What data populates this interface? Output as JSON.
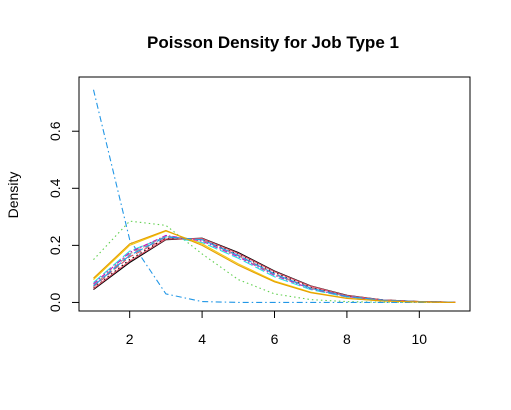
{
  "chart_data": {
    "type": "line",
    "title": "Poisson Density for Job Type 1",
    "xlabel": "",
    "ylabel": "Density",
    "xlim": [
      0.6,
      11.4
    ],
    "ylim": [
      -0.03,
      0.79
    ],
    "x_ticks": [
      2,
      4,
      6,
      8,
      10
    ],
    "x_tick_labels": [
      "2",
      "4",
      "6",
      "8",
      "10"
    ],
    "y_ticks": [
      0.0,
      0.2,
      0.4,
      0.6
    ],
    "y_tick_labels": [
      "0.0",
      "0.2",
      "0.4",
      "0.6"
    ],
    "grid": false,
    "legend": "none",
    "x": [
      1,
      2,
      3,
      4,
      5,
      6,
      7,
      8,
      9,
      10,
      11
    ],
    "series": [
      {
        "color": "#000000",
        "dash": "solid",
        "values": [
          0.045,
          0.14,
          0.22,
          0.225,
          0.175,
          0.11,
          0.058,
          0.025,
          0.009,
          0.003,
          0.001
        ]
      },
      {
        "color": "#DF536B",
        "dash": "6,3",
        "values": [
          0.055,
          0.16,
          0.225,
          0.22,
          0.165,
          0.1,
          0.052,
          0.022,
          0.008,
          0.003,
          0.001
        ]
      },
      {
        "color": "#61D04F",
        "dash": "1.5,3",
        "values": [
          0.15,
          0.285,
          0.27,
          0.17,
          0.08,
          0.03,
          0.01,
          0.003,
          0.001,
          0.0,
          0.0
        ]
      },
      {
        "color": "#2297E6",
        "dash": "6,3,1.5,3",
        "values": [
          0.745,
          0.22,
          0.03,
          0.003,
          0.0,
          0.0,
          0.0,
          0.0,
          0.0,
          0.0,
          0.0
        ]
      },
      {
        "color": "#28E2E5",
        "dash": "10,3",
        "values": [
          0.07,
          0.18,
          0.23,
          0.21,
          0.155,
          0.09,
          0.045,
          0.019,
          0.007,
          0.002,
          0.001
        ]
      },
      {
        "color": "#CD0BBC",
        "dash": "5,2,1.5,2",
        "values": [
          0.065,
          0.175,
          0.235,
          0.215,
          0.16,
          0.095,
          0.048,
          0.02,
          0.008,
          0.002,
          0.001
        ]
      },
      {
        "color": "#F5C710",
        "dash": "solid",
        "values": [
          0.08,
          0.2,
          0.25,
          0.205,
          0.135,
          0.075,
          0.036,
          0.015,
          0.005,
          0.002,
          0.0
        ]
      },
      {
        "color": "#9E9E9E",
        "dash": "6,3",
        "values": [
          0.06,
          0.17,
          0.232,
          0.218,
          0.163,
          0.098,
          0.05,
          0.021,
          0.008,
          0.003,
          0.001
        ]
      },
      {
        "color": "#000000",
        "dash": "1.5,3",
        "values": [
          0.05,
          0.15,
          0.225,
          0.222,
          0.17,
          0.105,
          0.055,
          0.023,
          0.009,
          0.003,
          0.001
        ]
      },
      {
        "color": "#DF536B",
        "dash": "solid",
        "values": [
          0.048,
          0.145,
          0.222,
          0.224,
          0.172,
          0.108,
          0.057,
          0.024,
          0.009,
          0.003,
          0.001
        ]
      },
      {
        "color": "#2297E6",
        "dash": "10,3",
        "values": [
          0.058,
          0.165,
          0.23,
          0.22,
          0.165,
          0.1,
          0.05,
          0.021,
          0.008,
          0.003,
          0.001
        ]
      },
      {
        "color": "#E69F00",
        "dash": "solid",
        "values": [
          0.085,
          0.205,
          0.252,
          0.2,
          0.13,
          0.072,
          0.034,
          0.014,
          0.005,
          0.002,
          0.0
        ]
      }
    ]
  }
}
